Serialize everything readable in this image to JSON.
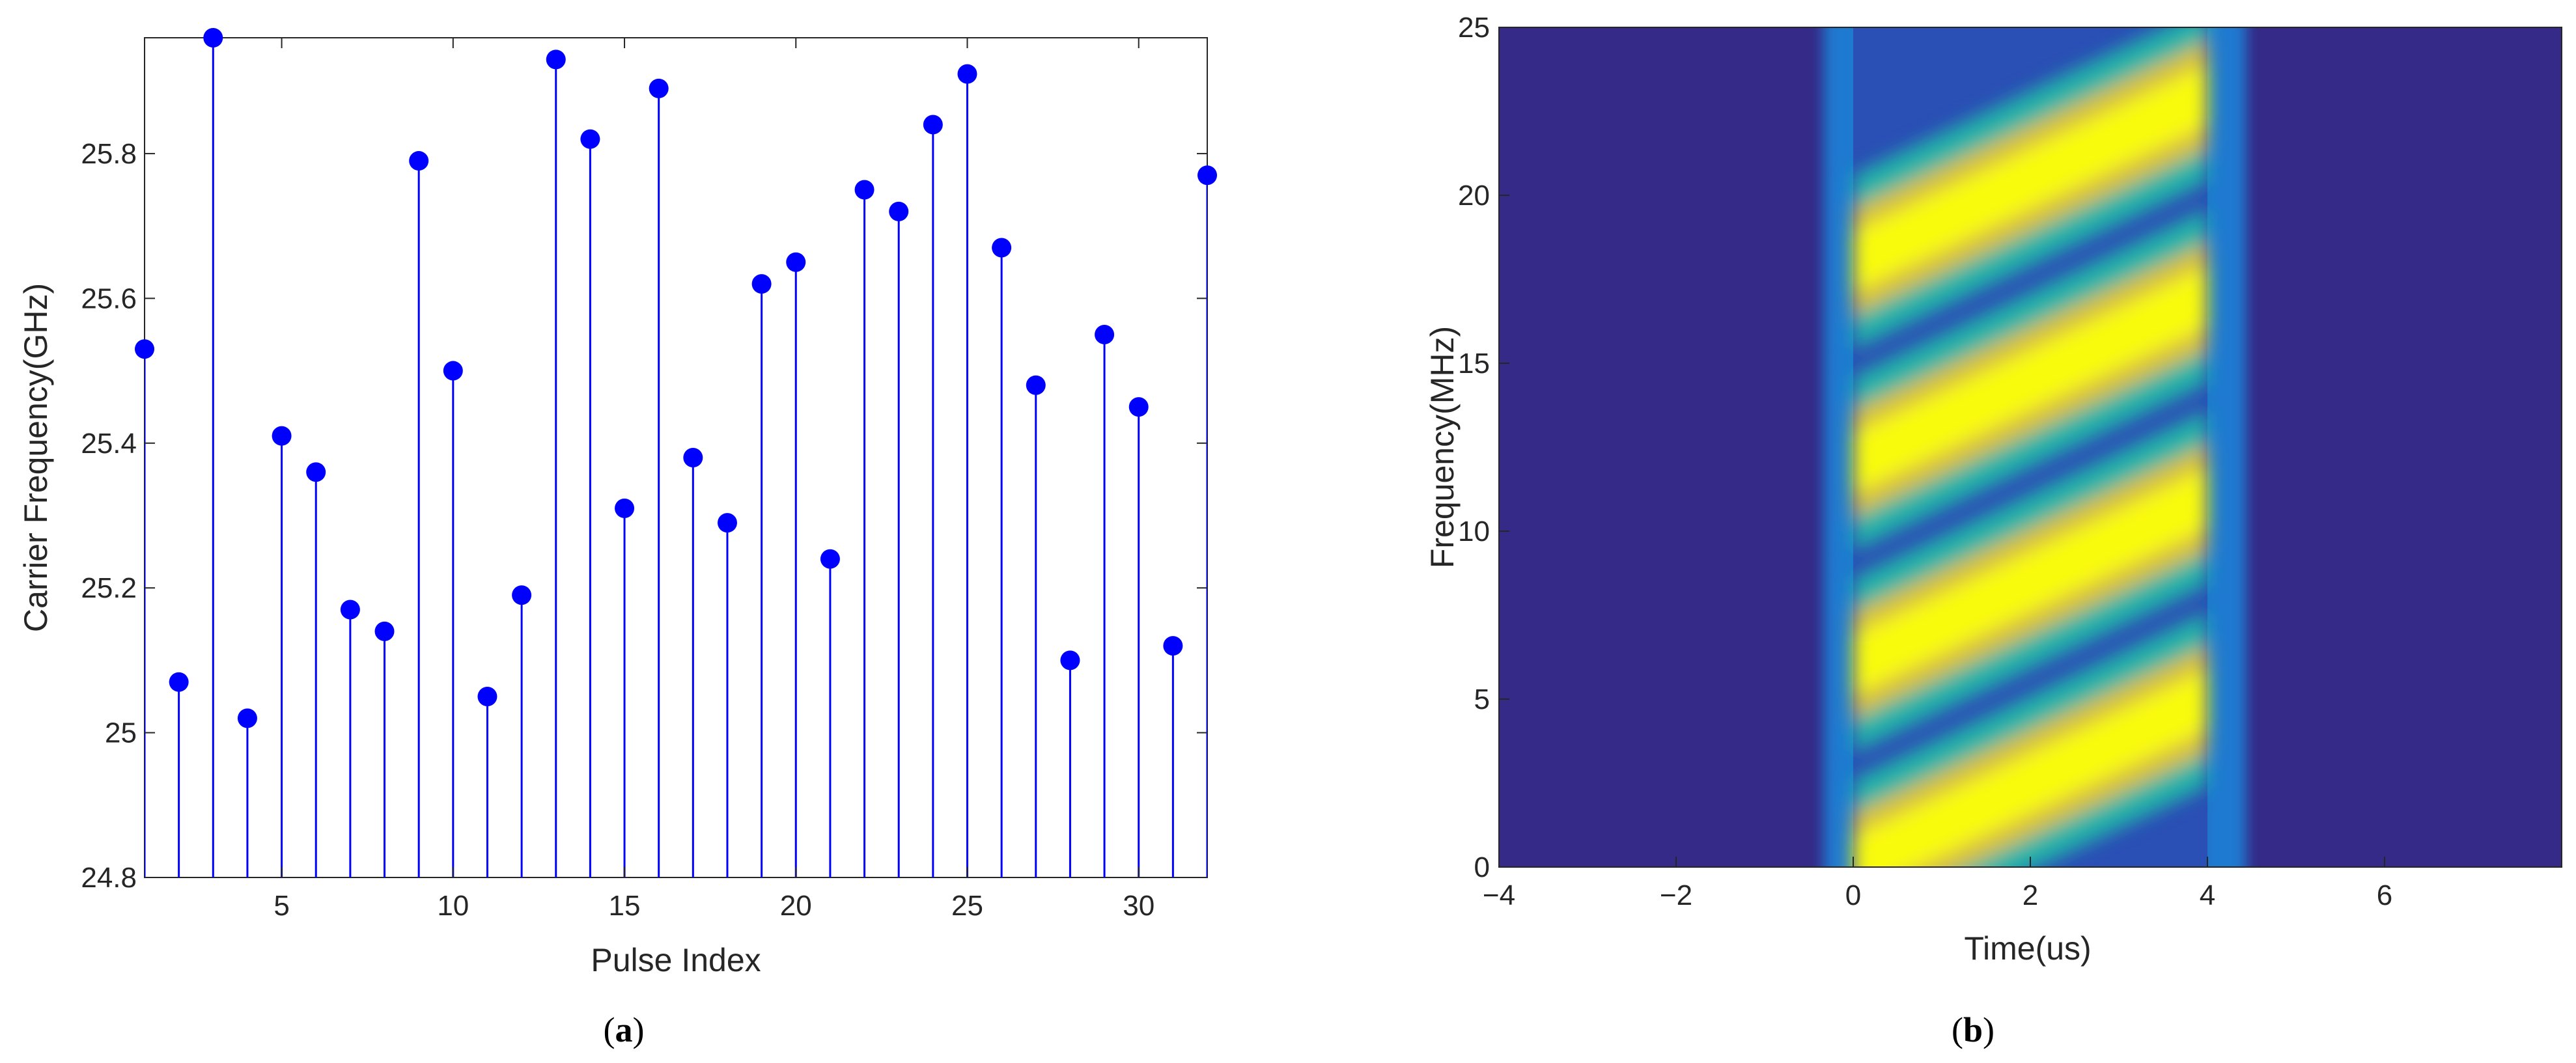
{
  "chart_data": [
    {
      "type": "stem",
      "caption": {
        "open": "(",
        "letter": "a",
        "close": ")"
      },
      "xlabel": "Pulse Index",
      "ylabel": "Carrier Frequency(GHz)",
      "xlim": [
        1,
        32
      ],
      "ylim": [
        24.8,
        25.96
      ],
      "xticks": [
        5,
        10,
        15,
        20,
        25,
        30
      ],
      "xtick_labels": [
        "5",
        "10",
        "15",
        "20",
        "25",
        "30"
      ],
      "yticks": [
        24.8,
        25,
        25.2,
        25.4,
        25.6,
        25.8
      ],
      "ytick_labels": [
        "24.8",
        "25",
        "25.2",
        "25.4",
        "25.6",
        "25.8"
      ],
      "baseline": 24.8,
      "color": "#0000ff",
      "x": [
        1,
        2,
        3,
        4,
        5,
        6,
        7,
        8,
        9,
        10,
        11,
        12,
        13,
        14,
        15,
        16,
        17,
        18,
        19,
        20,
        21,
        22,
        23,
        24,
        25,
        26,
        27,
        28,
        29,
        30,
        31,
        32
      ],
      "y": [
        25.53,
        25.07,
        25.96,
        25.02,
        25.41,
        25.36,
        25.17,
        25.14,
        25.79,
        25.5,
        25.05,
        25.19,
        25.93,
        25.82,
        25.31,
        25.89,
        25.38,
        25.29,
        25.62,
        25.65,
        25.24,
        25.75,
        25.72,
        25.84,
        25.91,
        25.67,
        25.48,
        25.1,
        25.55,
        25.45,
        25.12,
        25.77
      ]
    },
    {
      "type": "heatmap",
      "caption": {
        "open": "(",
        "letter": "b",
        "close": ")"
      },
      "xlabel": "Time(us)",
      "ylabel": "Frequency(MHz)",
      "xlim": [
        -4,
        8
      ],
      "ylim": [
        0,
        25
      ],
      "xticks": [
        -4,
        -2,
        0,
        2,
        4,
        6
      ],
      "xtick_labels": [
        "−4",
        "−2",
        "0",
        "2",
        "4",
        "6"
      ],
      "yticks": [
        0,
        5,
        10,
        15,
        20,
        25
      ],
      "ytick_labels": [
        "0",
        "5",
        "10",
        "15",
        "20",
        "25"
      ],
      "colormap": "parula",
      "background_color": "#352a87",
      "pulse_start": 0,
      "pulse_end": 4,
      "band_slope_mhz_per_us": 1.25,
      "band_intercepts_mhz": [
        0,
        6,
        12,
        18
      ],
      "band_color": "#f9fb0e"
    }
  ]
}
